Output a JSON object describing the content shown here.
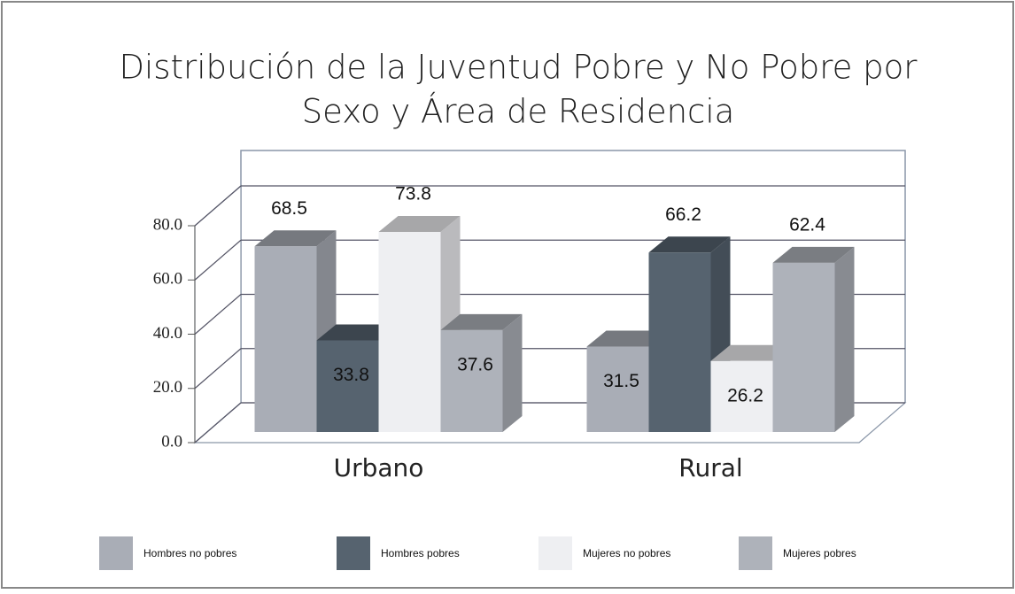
{
  "chart_data": {
    "type": "bar3d",
    "title": [
      "Distribución de la Juventud Pobre y No Pobre por",
      "Sexo y Área de Residencia"
    ],
    "categories": [
      "Urbano",
      "Rural"
    ],
    "series": [
      {
        "name": "Hombres no pobres",
        "color": "#a9adb6",
        "values": [
          68.5,
          31.5
        ]
      },
      {
        "name": "Hombres pobres",
        "color": "#56636f",
        "values": [
          33.8,
          66.2
        ]
      },
      {
        "name": "Mujeres no pobres",
        "color": "#eeeff2",
        "values": [
          73.8,
          26.2
        ]
      },
      {
        "name": "Mujeres pobres",
        "color": "#aeb2ba",
        "values": [
          37.6,
          62.4
        ]
      }
    ],
    "ylim": [
      0,
      80
    ],
    "yticks": [
      {
        "value": 0,
        "label": "0.0"
      },
      {
        "value": 20,
        "label": "20.0"
      },
      {
        "value": 40,
        "label": "40.0"
      },
      {
        "value": 60,
        "label": "60.0"
      },
      {
        "value": 80,
        "label": "80.0"
      }
    ],
    "grid": true,
    "legend": "bottom"
  }
}
